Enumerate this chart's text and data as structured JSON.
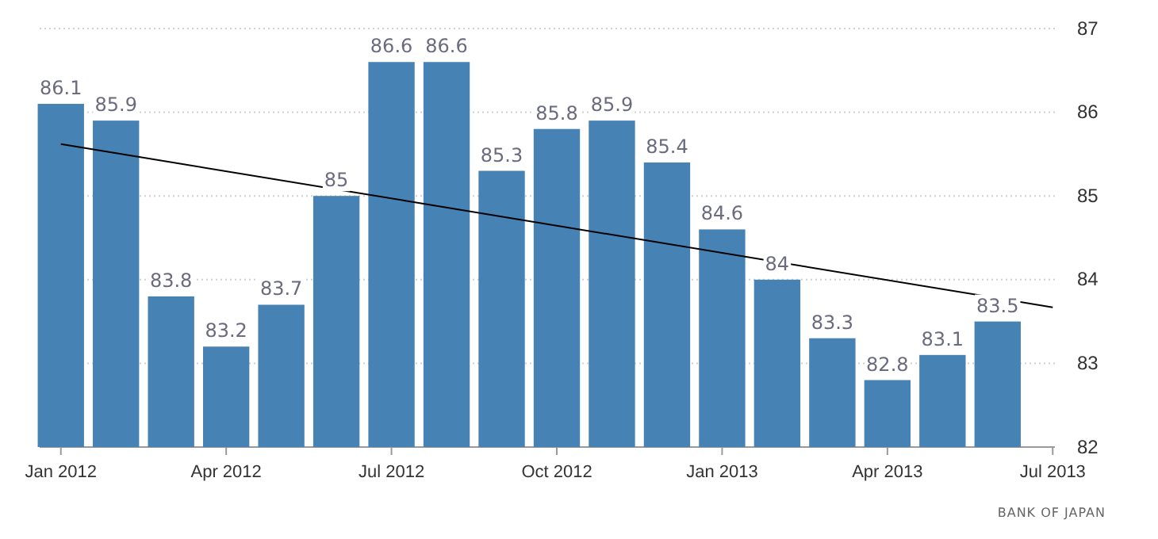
{
  "chart_data": {
    "type": "bar",
    "categories": [
      "Jan 2012",
      null,
      null,
      "Apr 2012",
      null,
      null,
      "Jul 2012",
      null,
      null,
      "Oct 2012",
      null,
      null,
      "Jan 2013",
      null,
      null,
      "Apr 2013",
      null,
      null,
      "Jul 2013"
    ],
    "series": [
      {
        "color": "#4682b4",
        "values": [
          86.1,
          85.9,
          83.8,
          83.2,
          83.7,
          85,
          86.6,
          86.6,
          85.3,
          85.8,
          85.9,
          85.4,
          84.6,
          84,
          83.3,
          82.8,
          83.1,
          83.5,
          null
        ],
        "value_labels": [
          "86.1",
          "85.9",
          "83.8",
          "83.2",
          "83.7",
          "85",
          "86.6",
          "86.6",
          "85.3",
          "85.8",
          "85.9",
          "85.4",
          "84.6",
          "84",
          "83.3",
          "82.8",
          "83.1",
          "83.5",
          null
        ]
      },
      {
        "type": "line",
        "color": "#000000",
        "values": [
          85.62,
          null,
          null,
          null,
          null,
          null,
          null,
          null,
          null,
          null,
          null,
          null,
          null,
          null,
          null,
          null,
          null,
          null,
          83.67
        ]
      }
    ],
    "ylim": [
      82,
      87
    ],
    "yticks": [
      82,
      83,
      84,
      85,
      86,
      87
    ],
    "grid": "y",
    "annotations": [
      "BANK OF JAPAN"
    ]
  }
}
